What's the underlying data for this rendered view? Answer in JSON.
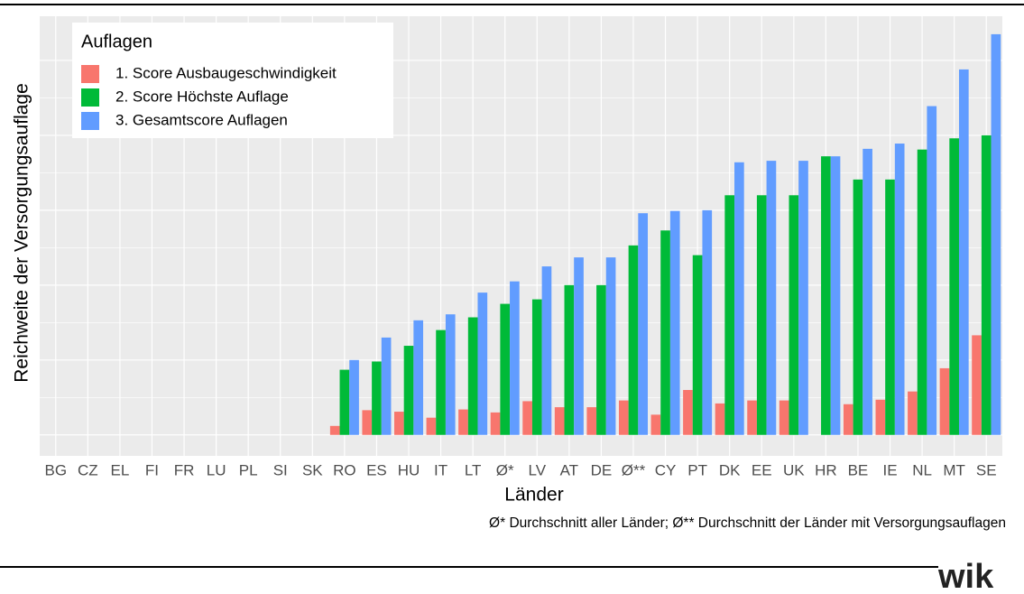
{
  "chart_data": {
    "type": "bar",
    "legend_title": "Auflagen",
    "x_label": "Länder",
    "y_label": "Reichweite der Versorgungsauflage",
    "footnote": "Ø* Durchschnitt aller Länder; Ø** Durchschnitt der Länder mit Versorgungsauflagen",
    "logo": "wik",
    "categories": [
      "BG",
      "CZ",
      "EL",
      "FI",
      "FR",
      "LU",
      "PL",
      "SI",
      "SK",
      "RO",
      "ES",
      "HU",
      "IT",
      "LT",
      "Ø*",
      "LV",
      "AT",
      "DE",
      "Ø**",
      "CY",
      "PT",
      "DK",
      "EE",
      "UK",
      "HR",
      "BE",
      "IE",
      "NL",
      "MT",
      "SE"
    ],
    "series": [
      {
        "name": "1. Score Ausbaugeschwindigkeit",
        "color": "#f8766d",
        "values": [
          0,
          0,
          0,
          0,
          0,
          0,
          0,
          0,
          0,
          0.12,
          0.33,
          0.31,
          0.23,
          0.34,
          0.3,
          0.45,
          0.37,
          0.37,
          0.46,
          0.27,
          0.6,
          0.42,
          0.46,
          0.46,
          0,
          0.41,
          0.47,
          0.58,
          0.89,
          1.33
        ]
      },
      {
        "name": "2. Score Höchste Auflage",
        "color": "#00ba38",
        "values": [
          0,
          0,
          0,
          0,
          0,
          0,
          0,
          0,
          0,
          0.87,
          0.98,
          1.19,
          1.4,
          1.57,
          1.75,
          1.81,
          2.0,
          2.0,
          2.53,
          2.73,
          2.4,
          3.2,
          3.2,
          3.2,
          3.72,
          3.41,
          3.41,
          3.81,
          3.96,
          4.0
        ]
      },
      {
        "name": "3. Gesamtscore Auflagen",
        "color": "#619cff",
        "values": [
          0,
          0,
          0,
          0,
          0,
          0,
          0,
          0,
          0,
          1.0,
          1.3,
          1.53,
          1.61,
          1.9,
          2.05,
          2.25,
          2.37,
          2.37,
          2.96,
          2.99,
          3.0,
          3.64,
          3.66,
          3.66,
          3.72,
          3.82,
          3.89,
          4.39,
          4.88,
          5.35
        ]
      }
    ],
    "ylim": [
      -0.28,
      5.59
    ],
    "yticks": [
      0,
      1,
      2,
      3,
      4,
      5
    ],
    "grid": true,
    "legend": "top-left"
  }
}
